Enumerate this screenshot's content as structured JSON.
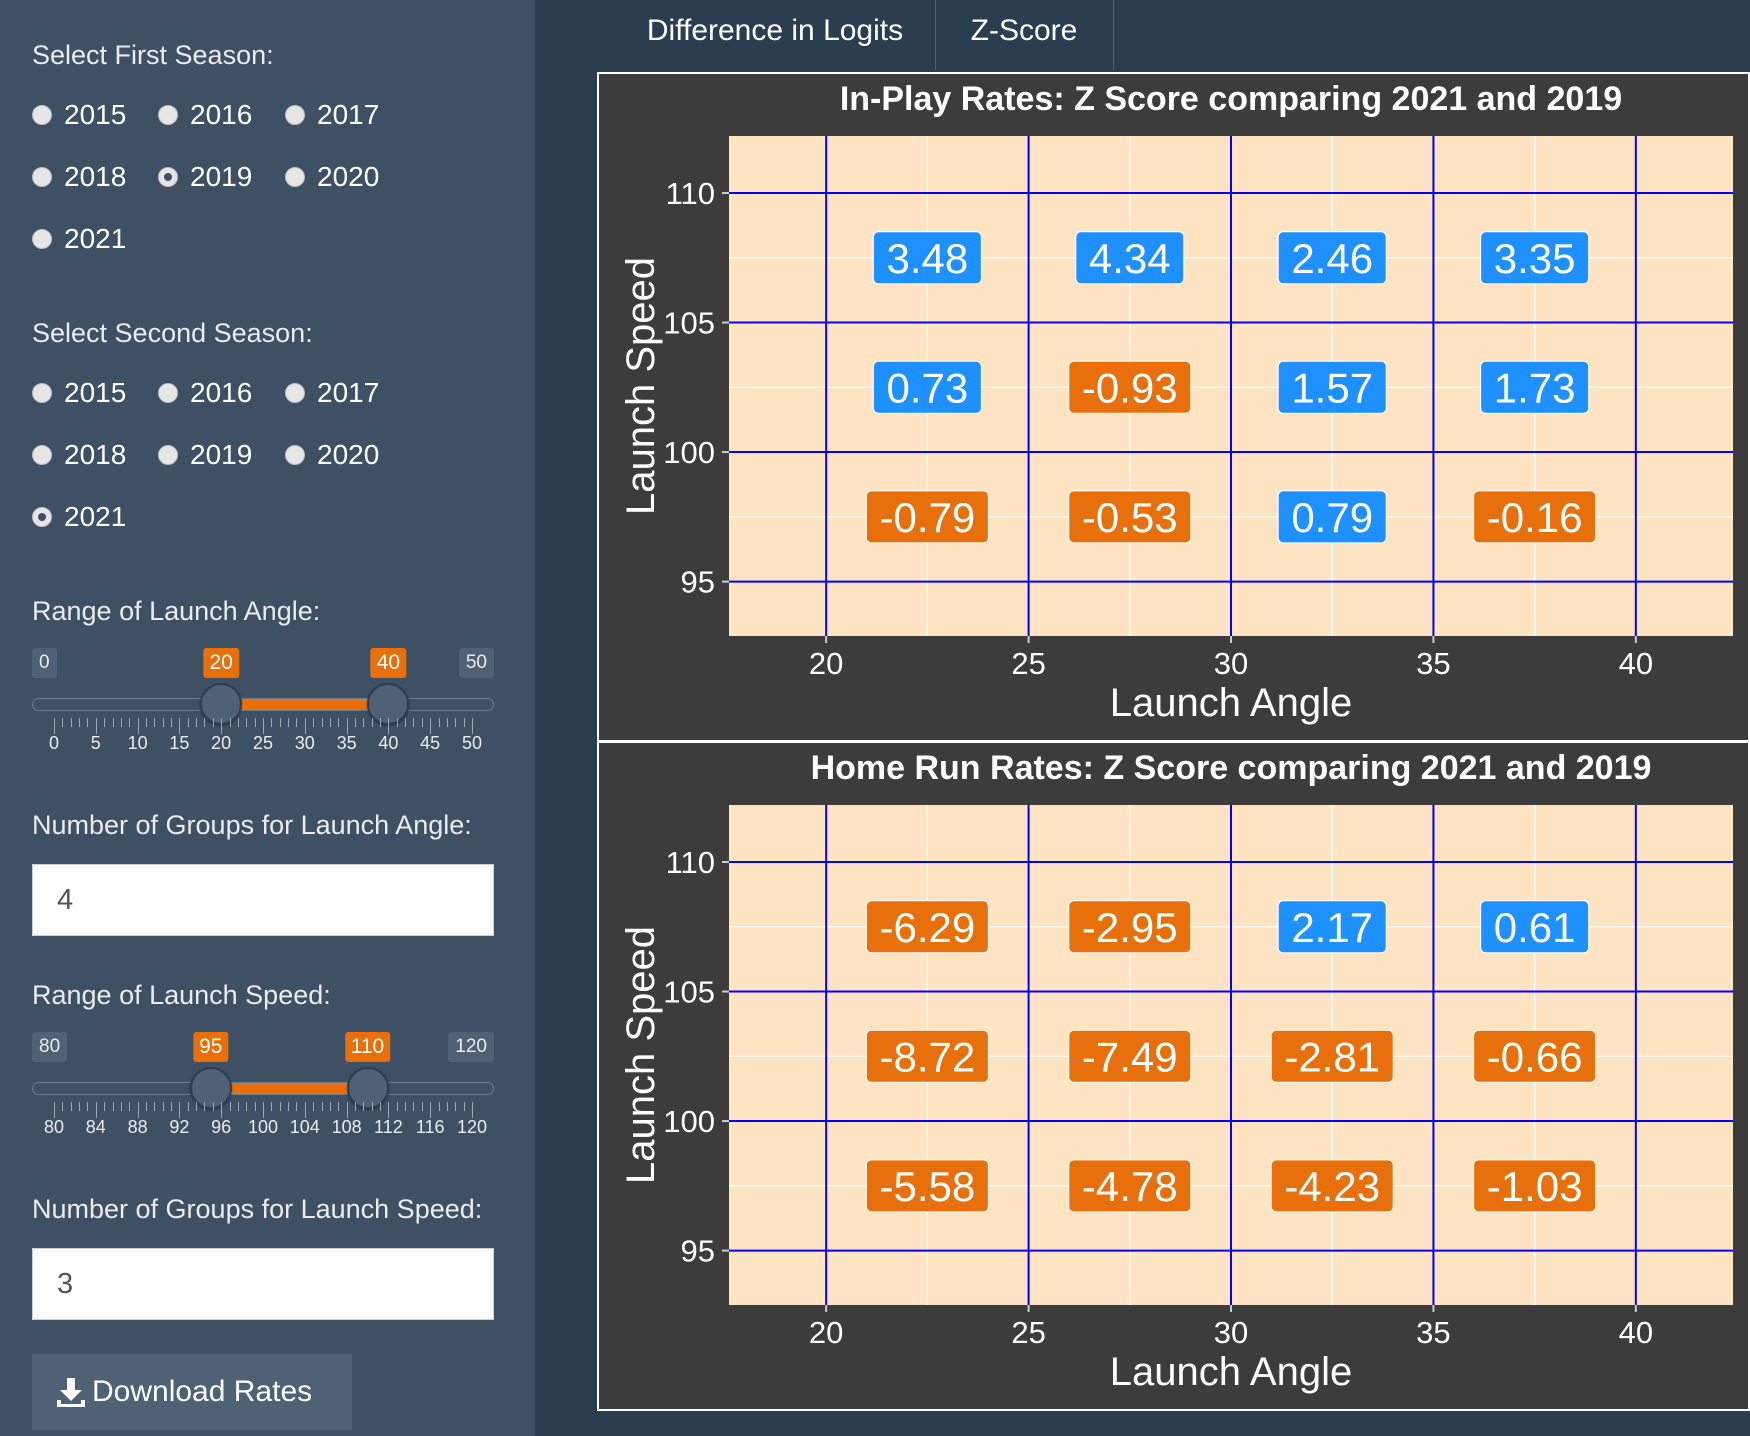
{
  "sidebar": {
    "first_season_label": "Select First Season:",
    "first_season_options": [
      "2015",
      "2016",
      "2017",
      "2018",
      "2019",
      "2020",
      "2021"
    ],
    "first_season_selected": "2019",
    "second_season_label": "Select Second Season:",
    "second_season_options": [
      "2015",
      "2016",
      "2017",
      "2018",
      "2019",
      "2020",
      "2021"
    ],
    "second_season_selected": "2021",
    "angle_range": {
      "label": "Range of Launch Angle:",
      "min": "0",
      "max": "50",
      "low": "20",
      "high": "40",
      "tick_labels": [
        "0",
        "5",
        "10",
        "15",
        "20",
        "25",
        "30",
        "35",
        "40",
        "45",
        "50"
      ]
    },
    "angle_groups": {
      "label": "Number of Groups for Launch Angle:",
      "value": "4"
    },
    "speed_range": {
      "label": "Range of Launch Speed:",
      "min": "80",
      "max": "120",
      "low": "95",
      "high": "110",
      "tick_labels": [
        "80",
        "84",
        "88",
        "92",
        "96",
        "100",
        "104",
        "108",
        "112",
        "116",
        "120"
      ]
    },
    "speed_groups": {
      "label": "Number of Groups for Launch Speed:",
      "value": "3"
    },
    "download_label": "Download Rates",
    "download_icon": "download-icon"
  },
  "tabs": [
    {
      "label": "Difference in Logits"
    },
    {
      "label": "Z-Score"
    }
  ],
  "colors": {
    "positive": "#1e90ff",
    "negative": "#e8700c",
    "panel": "#ffe4c4",
    "grid": "#0000ff",
    "accent": "#e8700c"
  },
  "chart_data": [
    {
      "type": "heatmap",
      "title": "In-Play Rates: Z Score comparing 2021 and 2019",
      "xlabel": "Launch Angle",
      "ylabel": "Launch Speed",
      "xlim": [
        17.6,
        42.4
      ],
      "ylim": [
        92.9,
        112.2
      ],
      "x_ticks": [
        "20",
        "25",
        "30",
        "35",
        "40"
      ],
      "y_ticks": [
        "95",
        "100",
        "105",
        "110"
      ],
      "x_breaks": [
        20,
        25,
        30,
        35,
        40
      ],
      "y_breaks": [
        95,
        100,
        105,
        110
      ],
      "cells": [
        {
          "x": 22.5,
          "y": 107.5,
          "label": "3.48"
        },
        {
          "x": 27.5,
          "y": 107.5,
          "label": "4.34"
        },
        {
          "x": 32.5,
          "y": 107.5,
          "label": "2.46"
        },
        {
          "x": 37.5,
          "y": 107.5,
          "label": "3.35"
        },
        {
          "x": 22.5,
          "y": 102.5,
          "label": "0.73"
        },
        {
          "x": 27.5,
          "y": 102.5,
          "label": "-0.93"
        },
        {
          "x": 32.5,
          "y": 102.5,
          "label": "1.57"
        },
        {
          "x": 37.5,
          "y": 102.5,
          "label": "1.73"
        },
        {
          "x": 22.5,
          "y": 97.5,
          "label": "-0.79"
        },
        {
          "x": 27.5,
          "y": 97.5,
          "label": "-0.53"
        },
        {
          "x": 32.5,
          "y": 97.5,
          "label": "0.79"
        },
        {
          "x": 37.5,
          "y": 97.5,
          "label": "-0.16"
        }
      ]
    },
    {
      "type": "heatmap",
      "title": "Home Run Rates: Z Score comparing 2021 and 2019",
      "xlabel": "Launch Angle",
      "ylabel": "Launch Speed",
      "xlim": [
        17.6,
        42.4
      ],
      "ylim": [
        92.9,
        112.2
      ],
      "x_ticks": [
        "20",
        "25",
        "30",
        "35",
        "40"
      ],
      "y_ticks": [
        "95",
        "100",
        "105",
        "110"
      ],
      "x_breaks": [
        20,
        25,
        30,
        35,
        40
      ],
      "y_breaks": [
        95,
        100,
        105,
        110
      ],
      "cells": [
        {
          "x": 22.5,
          "y": 107.5,
          "label": "-6.29"
        },
        {
          "x": 27.5,
          "y": 107.5,
          "label": "-2.95"
        },
        {
          "x": 32.5,
          "y": 107.5,
          "label": "2.17"
        },
        {
          "x": 37.5,
          "y": 107.5,
          "label": "0.61"
        },
        {
          "x": 22.5,
          "y": 102.5,
          "label": "-8.72"
        },
        {
          "x": 27.5,
          "y": 102.5,
          "label": "-7.49"
        },
        {
          "x": 32.5,
          "y": 102.5,
          "label": "-2.81"
        },
        {
          "x": 37.5,
          "y": 102.5,
          "label": "-0.66"
        },
        {
          "x": 22.5,
          "y": 97.5,
          "label": "-5.58"
        },
        {
          "x": 27.5,
          "y": 97.5,
          "label": "-4.78"
        },
        {
          "x": 32.5,
          "y": 97.5,
          "label": "-4.23"
        },
        {
          "x": 37.5,
          "y": 97.5,
          "label": "-1.03"
        }
      ]
    }
  ]
}
